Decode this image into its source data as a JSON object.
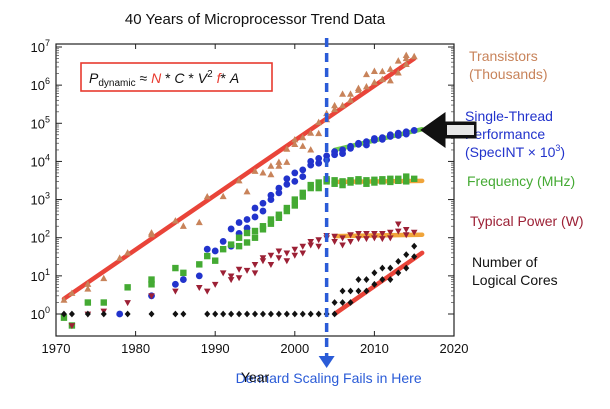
{
  "chart_data": {
    "type": "scatter",
    "title": "40 Years of Microprocessor Trend Data",
    "xlabel": "Year",
    "ylabel": "",
    "x_range": [
      1970,
      2020
    ],
    "y_range": [
      1,
      10000000
    ],
    "y_scale": "log",
    "x_ticks": [
      "1970",
      "1980",
      "1990",
      "2000",
      "2010",
      "2020"
    ],
    "y_tick_values": [
      1,
      10,
      100,
      1000,
      10000,
      100000,
      1000000,
      10000000
    ],
    "formula": {
      "p": "P",
      "sub": "dynamic",
      "approx": " ≈ ",
      "n": "N",
      "star1": " * ",
      "c": "C",
      "star2": " * ",
      "v": "V",
      "sup": "2",
      "space": " ",
      "f": "f",
      "star3": "* ",
      "a": "A"
    },
    "dennard_label": "Dennard Scaling Fails in Here",
    "dennard_year": 2004,
    "series": [
      {
        "name": "Transistors (Thousands)",
        "name_lines": [
          "Transistors",
          "(Thousands)"
        ],
        "color": "#c8835a",
        "marker": "triangle",
        "points": [
          [
            1971,
            2.3
          ],
          [
            1972,
            3.5
          ],
          [
            1974,
            4.5
          ],
          [
            1974,
            6
          ],
          [
            1976,
            8.5
          ],
          [
            1978,
            29
          ],
          [
            1979,
            40
          ],
          [
            1982,
            134
          ],
          [
            1982,
            120
          ],
          [
            1985,
            275
          ],
          [
            1986,
            200
          ],
          [
            1988,
            250
          ],
          [
            1989,
            1180
          ],
          [
            1991,
            1200
          ],
          [
            1993,
            3100
          ],
          [
            1994,
            1600
          ],
          [
            1995,
            5500
          ],
          [
            1996,
            5000
          ],
          [
            1997,
            7500
          ],
          [
            1997,
            4500
          ],
          [
            1998,
            7500
          ],
          [
            1998,
            9500
          ],
          [
            1999,
            21000
          ],
          [
            1999,
            9500
          ],
          [
            2000,
            37000
          ],
          [
            2000,
            28000
          ],
          [
            2001,
            42000
          ],
          [
            2001,
            25000
          ],
          [
            2002,
            55000
          ],
          [
            2002,
            20000
          ],
          [
            2003,
            105000
          ],
          [
            2003,
            54000
          ],
          [
            2004,
            125000
          ],
          [
            2004,
            180000
          ],
          [
            2005,
            230000
          ],
          [
            2005,
            290000
          ],
          [
            2006,
            290000
          ],
          [
            2006,
            580000
          ],
          [
            2007,
            580000
          ],
          [
            2007,
            400000
          ],
          [
            2008,
            731000
          ],
          [
            2008,
            820000
          ],
          [
            2009,
            904000
          ],
          [
            2009,
            1900000
          ],
          [
            2010,
            1170000
          ],
          [
            2010,
            2300000
          ],
          [
            2011,
            2270000
          ],
          [
            2011,
            1400000
          ],
          [
            2012,
            2600000
          ],
          [
            2012,
            1300000
          ],
          [
            2013,
            2100000
          ],
          [
            2013,
            4300000
          ],
          [
            2014,
            5000000
          ],
          [
            2014,
            3500000
          ],
          [
            2014,
            6000000
          ],
          [
            2015,
            5600000
          ]
        ]
      },
      {
        "name": "Single-Thread Performance (SpecINT × 10³)",
        "name_lines": [
          "Single-Thread",
          "Performance",
          "(SpecINT × 10"
        ],
        "name_sup": "3",
        "name_close": ")",
        "color": "#2233cc",
        "marker": "circle",
        "points": [
          [
            1978,
            1
          ],
          [
            1982,
            3
          ],
          [
            1985,
            6
          ],
          [
            1986,
            8
          ],
          [
            1988,
            10
          ],
          [
            1989,
            50
          ],
          [
            1990,
            45
          ],
          [
            1991,
            80
          ],
          [
            1992,
            60
          ],
          [
            1992,
            170
          ],
          [
            1993,
            130
          ],
          [
            1993,
            250
          ],
          [
            1994,
            300
          ],
          [
            1994,
            180
          ],
          [
            1995,
            600
          ],
          [
            1995,
            350
          ],
          [
            1996,
            800
          ],
          [
            1996,
            500
          ],
          [
            1997,
            1300
          ],
          [
            1997,
            1000
          ],
          [
            1998,
            2000
          ],
          [
            1998,
            1500
          ],
          [
            1999,
            2500
          ],
          [
            1999,
            3500
          ],
          [
            2000,
            3000
          ],
          [
            2000,
            5000
          ],
          [
            2001,
            6000
          ],
          [
            2001,
            4000
          ],
          [
            2002,
            8000
          ],
          [
            2002,
            10000
          ],
          [
            2003,
            12000
          ],
          [
            2003,
            9000
          ],
          [
            2004,
            14000
          ],
          [
            2004,
            11000
          ],
          [
            2005,
            15000
          ],
          [
            2005,
            18000
          ],
          [
            2006,
            20000
          ],
          [
            2006,
            16000
          ],
          [
            2007,
            25000
          ],
          [
            2007,
            22000
          ],
          [
            2008,
            28000
          ],
          [
            2008,
            30000
          ],
          [
            2009,
            33000
          ],
          [
            2009,
            27000
          ],
          [
            2010,
            36000
          ],
          [
            2010,
            40000
          ],
          [
            2011,
            42000
          ],
          [
            2011,
            38000
          ],
          [
            2012,
            45000
          ],
          [
            2012,
            50000
          ],
          [
            2013,
            48000
          ],
          [
            2013,
            55000
          ],
          [
            2014,
            60000
          ],
          [
            2014,
            52000
          ],
          [
            2015,
            65000
          ]
        ]
      },
      {
        "name": "Frequency (MHz)",
        "name_lines": [
          "Frequency (MHz)"
        ],
        "color": "#44aa33",
        "marker": "square",
        "points": [
          [
            1971,
            0.8
          ],
          [
            1972,
            0.5
          ],
          [
            1974,
            2
          ],
          [
            1976,
            2
          ],
          [
            1979,
            5
          ],
          [
            1982,
            8
          ],
          [
            1982,
            6
          ],
          [
            1985,
            16
          ],
          [
            1986,
            12
          ],
          [
            1988,
            20
          ],
          [
            1989,
            33
          ],
          [
            1990,
            25
          ],
          [
            1991,
            50
          ],
          [
            1992,
            66
          ],
          [
            1993,
            60
          ],
          [
            1993,
            100
          ],
          [
            1994,
            75
          ],
          [
            1994,
            133
          ],
          [
            1995,
            150
          ],
          [
            1995,
            100
          ],
          [
            1996,
            200
          ],
          [
            1996,
            166
          ],
          [
            1997,
            300
          ],
          [
            1997,
            233
          ],
          [
            1998,
            400
          ],
          [
            1998,
            333
          ],
          [
            1999,
            500
          ],
          [
            1999,
            600
          ],
          [
            2000,
            1000
          ],
          [
            2000,
            700
          ],
          [
            2001,
            1500
          ],
          [
            2001,
            1200
          ],
          [
            2002,
            2000
          ],
          [
            2002,
            2400
          ],
          [
            2003,
            2800
          ],
          [
            2003,
            2000
          ],
          [
            2004,
            3000
          ],
          [
            2004,
            3400
          ],
          [
            2005,
            3200
          ],
          [
            2005,
            2600
          ],
          [
            2006,
            3000
          ],
          [
            2006,
            2400
          ],
          [
            2007,
            3200
          ],
          [
            2007,
            2800
          ],
          [
            2008,
            3000
          ],
          [
            2008,
            3400
          ],
          [
            2009,
            3200
          ],
          [
            2009,
            2600
          ],
          [
            2010,
            3300
          ],
          [
            2010,
            2800
          ],
          [
            2011,
            3400
          ],
          [
            2011,
            3000
          ],
          [
            2012,
            3500
          ],
          [
            2012,
            2900
          ],
          [
            2013,
            3500
          ],
          [
            2013,
            3100
          ],
          [
            2014,
            4000
          ],
          [
            2014,
            3000
          ],
          [
            2015,
            3500
          ]
        ]
      },
      {
        "name": "Typical Power (W)",
        "name_lines": [
          "Typical Power (W)"
        ],
        "color": "#9c2035",
        "marker": "triangle-down",
        "points": [
          [
            1972,
            0.5
          ],
          [
            1974,
            1
          ],
          [
            1976,
            1.2
          ],
          [
            1979,
            2
          ],
          [
            1982,
            3
          ],
          [
            1985,
            4
          ],
          [
            1988,
            5
          ],
          [
            1989,
            4
          ],
          [
            1990,
            6
          ],
          [
            1991,
            12
          ],
          [
            1992,
            10
          ],
          [
            1992,
            8
          ],
          [
            1993,
            15
          ],
          [
            1993,
            9
          ],
          [
            1994,
            14
          ],
          [
            1995,
            20
          ],
          [
            1995,
            12
          ],
          [
            1996,
            25
          ],
          [
            1996,
            30
          ],
          [
            1997,
            35
          ],
          [
            1997,
            20
          ],
          [
            1998,
            30
          ],
          [
            1998,
            45
          ],
          [
            1999,
            40
          ],
          [
            1999,
            25
          ],
          [
            2000,
            50
          ],
          [
            2000,
            35
          ],
          [
            2001,
            60
          ],
          [
            2001,
            40
          ],
          [
            2002,
            65
          ],
          [
            2002,
            80
          ],
          [
            2003,
            89
          ],
          [
            2003,
            60
          ],
          [
            2004,
            100
          ],
          [
            2004,
            115
          ],
          [
            2005,
            110
          ],
          [
            2005,
            80
          ],
          [
            2006,
            100
          ],
          [
            2006,
            65
          ],
          [
            2007,
            120
          ],
          [
            2007,
            80
          ],
          [
            2008,
            130
          ],
          [
            2008,
            95
          ],
          [
            2009,
            95
          ],
          [
            2009,
            130
          ],
          [
            2010,
            130
          ],
          [
            2010,
            100
          ],
          [
            2011,
            130
          ],
          [
            2011,
            95
          ],
          [
            2012,
            140
          ],
          [
            2012,
            100
          ],
          [
            2013,
            150
          ],
          [
            2013,
            230
          ],
          [
            2014,
            165
          ],
          [
            2014,
            120
          ],
          [
            2015,
            140
          ]
        ]
      },
      {
        "name": "Number of Logical Cores",
        "name_lines": [
          "Number of",
          "Logical Cores"
        ],
        "color": "#111111",
        "marker": "diamond",
        "points": [
          [
            1971,
            1
          ],
          [
            1972,
            1
          ],
          [
            1974,
            1
          ],
          [
            1976,
            1
          ],
          [
            1979,
            1
          ],
          [
            1982,
            1
          ],
          [
            1985,
            1
          ],
          [
            1986,
            1
          ],
          [
            1989,
            1
          ],
          [
            1990,
            1
          ],
          [
            1991,
            1
          ],
          [
            1992,
            1
          ],
          [
            1993,
            1
          ],
          [
            1994,
            1
          ],
          [
            1995,
            1
          ],
          [
            1996,
            1
          ],
          [
            1997,
            1
          ],
          [
            1998,
            1
          ],
          [
            1999,
            1
          ],
          [
            2000,
            1
          ],
          [
            2001,
            1
          ],
          [
            2002,
            1
          ],
          [
            2003,
            1
          ],
          [
            2004,
            1
          ],
          [
            2005,
            2
          ],
          [
            2005,
            1
          ],
          [
            2006,
            2
          ],
          [
            2006,
            4
          ],
          [
            2007,
            2
          ],
          [
            2007,
            4
          ],
          [
            2008,
            4
          ],
          [
            2008,
            8
          ],
          [
            2009,
            4
          ],
          [
            2009,
            8
          ],
          [
            2010,
            6
          ],
          [
            2010,
            12
          ],
          [
            2011,
            8
          ],
          [
            2011,
            16
          ],
          [
            2012,
            8
          ],
          [
            2012,
            16
          ],
          [
            2013,
            12
          ],
          [
            2013,
            24
          ],
          [
            2014,
            16
          ],
          [
            2014,
            36
          ],
          [
            2015,
            32
          ],
          [
            2015,
            60
          ]
        ]
      }
    ],
    "trend_lines": [
      {
        "color": "#e83a2f",
        "points": [
          [
            1971,
            2.5
          ],
          [
            2015,
            5000000
          ]
        ]
      },
      {
        "color": "#66cc44",
        "points": [
          [
            2005,
            20000
          ],
          [
            2016,
            70000
          ]
        ]
      },
      {
        "color": "#f0a030",
        "points": [
          [
            2005,
            2900
          ],
          [
            2016,
            3100
          ]
        ]
      },
      {
        "color": "#f0a030",
        "points": [
          [
            2005,
            110
          ],
          [
            2016,
            120
          ]
        ]
      },
      {
        "color": "#e83a2f",
        "points": [
          [
            2005,
            1
          ],
          [
            2016,
            40
          ]
        ]
      }
    ]
  }
}
